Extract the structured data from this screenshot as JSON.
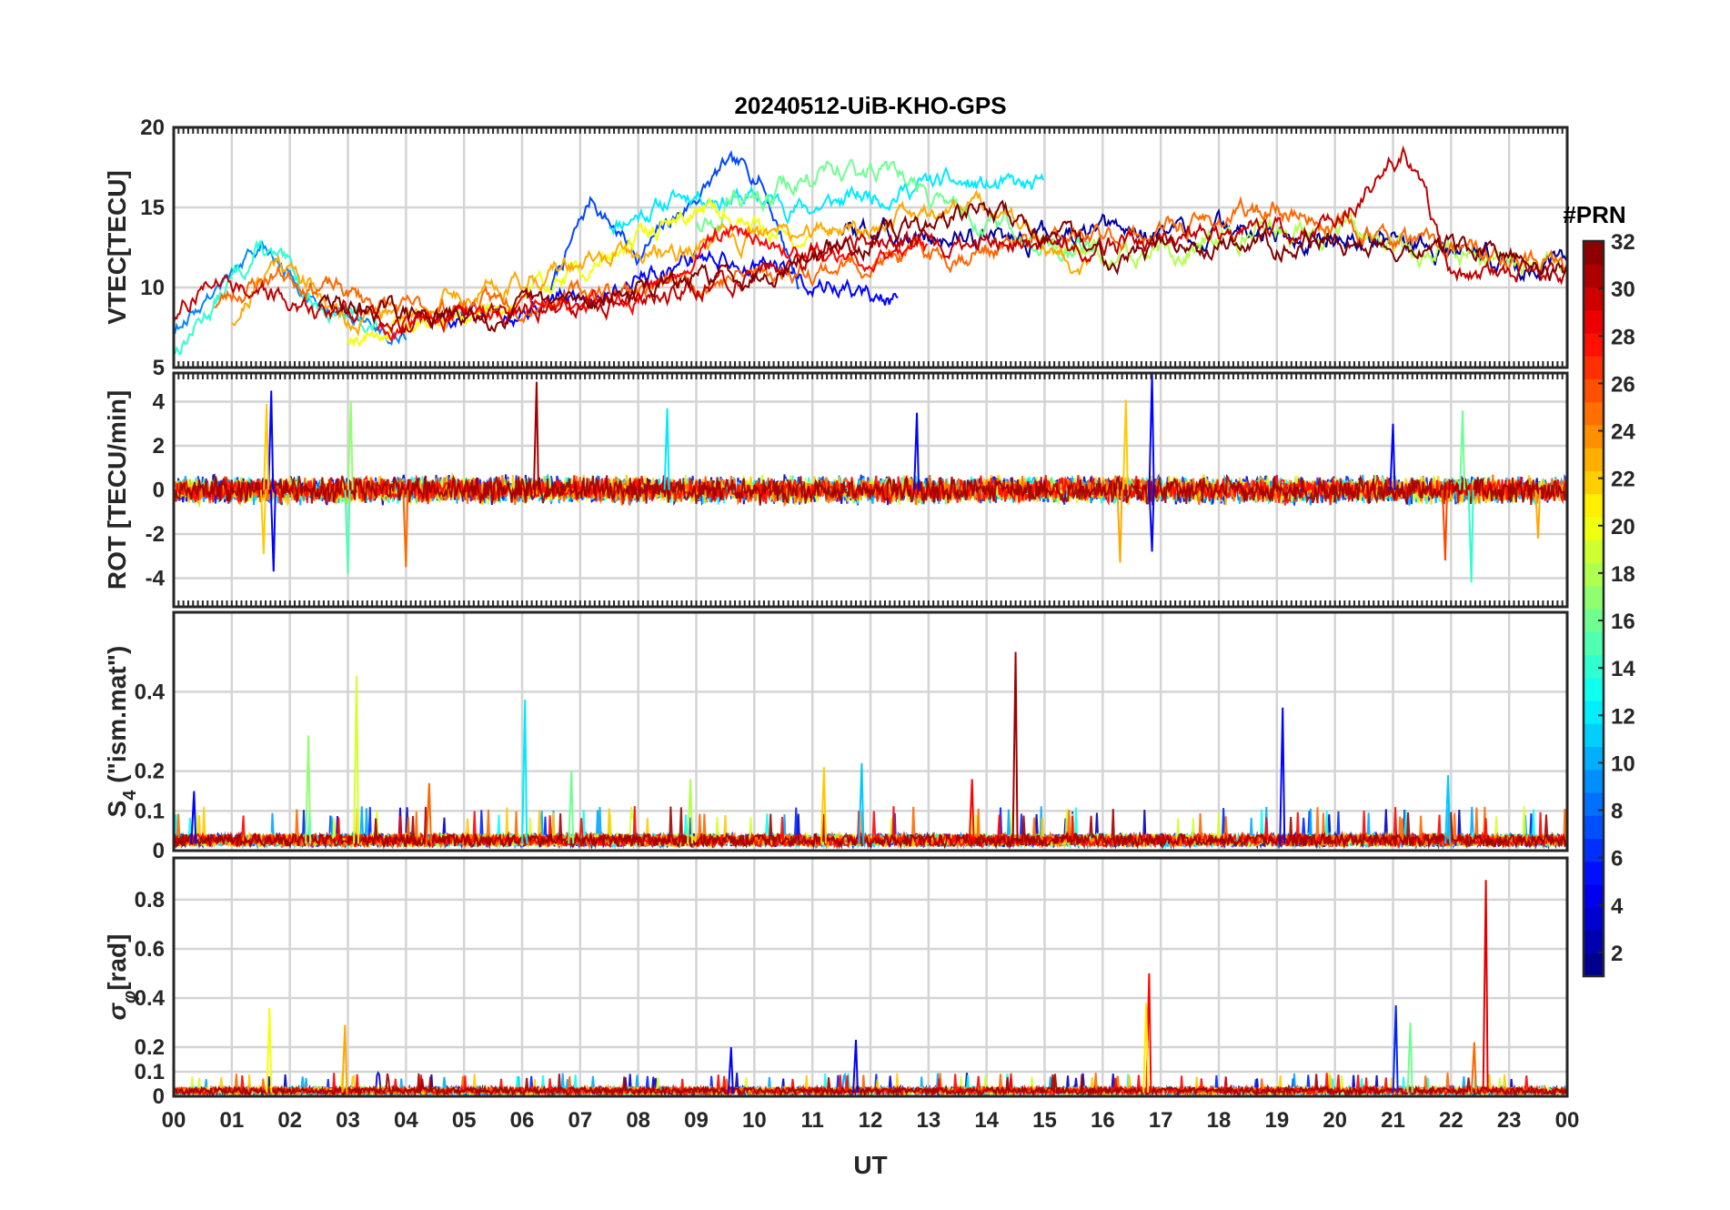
{
  "chart_data": {
    "type": "line",
    "title": "20240512-UiB-KHO-GPS",
    "xlabel": "UT",
    "x_ticks": [
      "00",
      "01",
      "02",
      "03",
      "04",
      "05",
      "06",
      "07",
      "08",
      "09",
      "10",
      "11",
      "12",
      "13",
      "14",
      "15",
      "16",
      "17",
      "18",
      "19",
      "20",
      "21",
      "22",
      "23",
      "00"
    ],
    "x_range_hours": [
      0,
      24
    ],
    "colorbar": {
      "title": "#PRN",
      "range": [
        1,
        32
      ],
      "ticks": [
        "2",
        "4",
        "6",
        "8",
        "10",
        "12",
        "14",
        "16",
        "18",
        "20",
        "22",
        "24",
        "26",
        "28",
        "30",
        "32"
      ],
      "colormap": "jet"
    },
    "panels": [
      {
        "id": "vtec",
        "ylabel": "VTEC[TECU]",
        "ylim": [
          5,
          20
        ],
        "yticks": [
          5,
          10,
          15,
          20
        ],
        "ytick_labels": [
          "5",
          "10",
          "15",
          "20"
        ],
        "grid": true,
        "series": [
          {
            "name": "PRN 2",
            "prn": 2,
            "t0": 11.5,
            "t1": 24,
            "base": [
              [
                11.5,
                13.5
              ],
              [
                14,
                13
              ],
              [
                18,
                13.5
              ],
              [
                21,
                13
              ],
              [
                24,
                11
              ]
            ],
            "noise": 0.9,
            "seed": 3
          },
          {
            "name": "PRN 5",
            "prn": 5,
            "t0": 4.5,
            "t1": 12.5,
            "base": [
              [
                4.5,
                8
              ],
              [
                7,
                9.5
              ],
              [
                9,
                12
              ],
              [
                10.5,
                11
              ],
              [
                12.5,
                9
              ]
            ],
            "noise": 0.8,
            "seed": 5
          },
          {
            "name": "PRN 7",
            "prn": 7,
            "t0": 6.5,
            "t1": 10.8,
            "base": [
              [
                6.5,
                10
              ],
              [
                7.2,
                15.5
              ],
              [
                8,
                12
              ],
              [
                9.5,
                17.5
              ],
              [
                10.1,
                17
              ],
              [
                10.8,
                10
              ]
            ],
            "noise": 0.7,
            "seed": 7
          },
          {
            "name": "PRN 9",
            "prn": 9,
            "t0": 0,
            "t1": 4,
            "base": [
              [
                0,
                7.5
              ],
              [
                1.5,
                12.5
              ],
              [
                2.5,
                9
              ],
              [
                4,
                7
              ]
            ],
            "noise": 0.6,
            "seed": 9
          },
          {
            "name": "PRN 12",
            "prn": 12,
            "t0": 7.5,
            "t1": 15,
            "base": [
              [
                7.5,
                14
              ],
              [
                9,
                16
              ],
              [
                11,
                15
              ],
              [
                13,
                16.5
              ],
              [
                15,
                16
              ]
            ],
            "noise": 0.8,
            "seed": 11
          },
          {
            "name": "PRN 14",
            "prn": 14,
            "t0": 0,
            "t1": 3.5,
            "base": [
              [
                0,
                6
              ],
              [
                1.5,
                12.5
              ],
              [
                2.5,
                9
              ],
              [
                3.5,
                7.5
              ]
            ],
            "noise": 0.8,
            "seed": 13
          },
          {
            "name": "PRN 16",
            "prn": 16,
            "t0": 9,
            "t1": 16,
            "base": [
              [
                9,
                14
              ],
              [
                11,
                17
              ],
              [
                12,
                17.5
              ],
              [
                14,
                14
              ],
              [
                16,
                12
              ]
            ],
            "noise": 0.9,
            "seed": 15
          },
          {
            "name": "PRN 18",
            "prn": 18,
            "t0": 15,
            "t1": 24,
            "base": [
              [
                15,
                13
              ],
              [
                17,
                12
              ],
              [
                19,
                14
              ],
              [
                21,
                12.5
              ],
              [
                24,
                11
              ]
            ],
            "noise": 0.9,
            "seed": 17
          },
          {
            "name": "PRN 20",
            "prn": 20,
            "t0": 3,
            "t1": 11,
            "base": [
              [
                3,
                7
              ],
              [
                5,
                8
              ],
              [
                7,
                11
              ],
              [
                9,
                15
              ],
              [
                11,
                13
              ]
            ],
            "noise": 0.8,
            "seed": 19
          },
          {
            "name": "PRN 23",
            "prn": 23,
            "t0": 1,
            "t1": 15.8,
            "base": [
              [
                1,
                8
              ],
              [
                1.8,
                12
              ],
              [
                3,
                8
              ],
              [
                5,
                9.5
              ],
              [
                7,
                11.5
              ],
              [
                12,
                14
              ],
              [
                14,
                15.5
              ],
              [
                15.8,
                11
              ]
            ],
            "noise": 0.8,
            "seed": 21
          },
          {
            "name": "PRN 25",
            "prn": 25,
            "t0": 0.7,
            "t1": 24,
            "base": [
              [
                0.7,
                9
              ],
              [
                1.8,
                11
              ],
              [
                4,
                8.5
              ],
              [
                8,
                10
              ],
              [
                13,
                12
              ],
              [
                17,
                13.5
              ],
              [
                19,
                15
              ],
              [
                21,
                13
              ],
              [
                24,
                11
              ]
            ],
            "noise": 0.8,
            "seed": 23
          },
          {
            "name": "PRN 28",
            "prn": 28,
            "t0": 3.5,
            "t1": 13,
            "base": [
              [
                3.5,
                7.5
              ],
              [
                6,
                8.5
              ],
              [
                8,
                9.5
              ],
              [
                9.5,
                13.5
              ],
              [
                11,
                12
              ],
              [
                13,
                12
              ]
            ],
            "noise": 0.7,
            "seed": 25
          },
          {
            "name": "PRN 30",
            "prn": 30,
            "t0": 0,
            "t1": 24,
            "base": [
              [
                0,
                8
              ],
              [
                0.7,
                11
              ],
              [
                2,
                9
              ],
              [
                4,
                8
              ],
              [
                8,
                9
              ],
              [
                12,
                13
              ],
              [
                16,
                12.5
              ],
              [
                20,
                14
              ],
              [
                21.2,
                18.5
              ],
              [
                22,
                11
              ],
              [
                24,
                11
              ]
            ],
            "noise": 0.8,
            "seed": 27
          },
          {
            "name": "PRN 32",
            "prn": 32,
            "t0": 2.5,
            "t1": 24,
            "base": [
              [
                2.5,
                9
              ],
              [
                5,
                8
              ],
              [
                10,
                11
              ],
              [
                14,
                15
              ],
              [
                16,
                12
              ],
              [
                18,
                13
              ],
              [
                22,
                12.5
              ],
              [
                24,
                11
              ]
            ],
            "noise": 0.8,
            "seed": 29
          }
        ]
      },
      {
        "id": "rot",
        "ylabel": "ROT [TECU/min]",
        "ylim": [
          -5.3,
          5.3
        ],
        "yticks": [
          -4,
          -2,
          0,
          2,
          4
        ],
        "ytick_labels": [
          "-4",
          "-2",
          "0",
          "2",
          "4"
        ],
        "grid": true,
        "noise_amplitude": 0.45,
        "spikes": [
          {
            "t": 1.68,
            "v": 4.5,
            "prn": 5
          },
          {
            "t": 1.72,
            "v": -3.7,
            "prn": 5
          },
          {
            "t": 1.6,
            "v": 3.9,
            "prn": 22
          },
          {
            "t": 1.55,
            "v": -2.9,
            "prn": 22
          },
          {
            "t": 3.05,
            "v": 4.0,
            "prn": 17
          },
          {
            "t": 3.0,
            "v": -3.8,
            "prn": 15
          },
          {
            "t": 4.0,
            "v": -3.5,
            "prn": 25
          },
          {
            "t": 6.25,
            "v": 4.9,
            "prn": 31
          },
          {
            "t": 8.5,
            "v": 3.7,
            "prn": 12
          },
          {
            "t": 12.8,
            "v": 3.5,
            "prn": 5
          },
          {
            "t": 16.4,
            "v": 4.1,
            "prn": 22
          },
          {
            "t": 16.85,
            "v": 5.3,
            "prn": 5
          },
          {
            "t": 16.85,
            "v": -2.8,
            "prn": 5
          },
          {
            "t": 16.3,
            "v": -3.3,
            "prn": 23
          },
          {
            "t": 21.0,
            "v": 3.0,
            "prn": 5
          },
          {
            "t": 21.9,
            "v": -3.2,
            "prn": 26
          },
          {
            "t": 22.2,
            "v": 3.6,
            "prn": 16
          },
          {
            "t": 22.35,
            "v": -4.2,
            "prn": 14
          },
          {
            "t": 23.5,
            "v": -2.2,
            "prn": 23
          }
        ]
      },
      {
        "id": "s4",
        "ylabel": "S4 (\"ism.mat\")",
        "ylabel_main": "S",
        "ylabel_sub": "4",
        "ylabel_rest": " (\"ism.mat\")",
        "ylim": [
          0,
          0.6
        ],
        "yticks": [
          0,
          0.1,
          0.2,
          0.4
        ],
        "ytick_labels": [
          "0",
          "0.1",
          "0.2",
          "0.4"
        ],
        "grid": true,
        "noise_amplitude": 0.035,
        "spikes": [
          {
            "t": 2.32,
            "v": 0.29,
            "prn": 17
          },
          {
            "t": 3.15,
            "v": 0.44,
            "prn": 19
          },
          {
            "t": 4.4,
            "v": 0.17,
            "prn": 25
          },
          {
            "t": 6.05,
            "v": 0.38,
            "prn": 12
          },
          {
            "t": 6.85,
            "v": 0.2,
            "prn": 16
          },
          {
            "t": 8.9,
            "v": 0.18,
            "prn": 18
          },
          {
            "t": 11.2,
            "v": 0.21,
            "prn": 22
          },
          {
            "t": 11.85,
            "v": 0.22,
            "prn": 11
          },
          {
            "t": 13.75,
            "v": 0.18,
            "prn": 28
          },
          {
            "t": 14.5,
            "v": 0.5,
            "prn": 31
          },
          {
            "t": 19.1,
            "v": 0.36,
            "prn": 5
          },
          {
            "t": 21.95,
            "v": 0.19,
            "prn": 11
          },
          {
            "t": 0.35,
            "v": 0.15,
            "prn": 5
          }
        ]
      },
      {
        "id": "sigma",
        "ylabel": "σφ[rad]",
        "ylabel_main": "σ",
        "ylabel_sub": "φ",
        "ylabel_rest": "[rad]",
        "ylim": [
          0,
          0.97
        ],
        "yticks": [
          0,
          0.1,
          0.2,
          0.4,
          0.6,
          0.8
        ],
        "ytick_labels": [
          "0",
          "0.1",
          "0.2",
          "0.4",
          "0.6",
          "0.8"
        ],
        "grid": true,
        "noise_amplitude": 0.03,
        "spikes": [
          {
            "t": 1.65,
            "v": 0.36,
            "prn": 20
          },
          {
            "t": 2.95,
            "v": 0.29,
            "prn": 23
          },
          {
            "t": 16.8,
            "v": 0.5,
            "prn": 28
          },
          {
            "t": 16.75,
            "v": 0.38,
            "prn": 21
          },
          {
            "t": 21.05,
            "v": 0.37,
            "prn": 6
          },
          {
            "t": 21.3,
            "v": 0.3,
            "prn": 16
          },
          {
            "t": 22.6,
            "v": 0.88,
            "prn": 29
          },
          {
            "t": 22.4,
            "v": 0.22,
            "prn": 25
          },
          {
            "t": 9.6,
            "v": 0.2,
            "prn": 5
          },
          {
            "t": 11.75,
            "v": 0.23,
            "prn": 5
          }
        ]
      }
    ]
  }
}
